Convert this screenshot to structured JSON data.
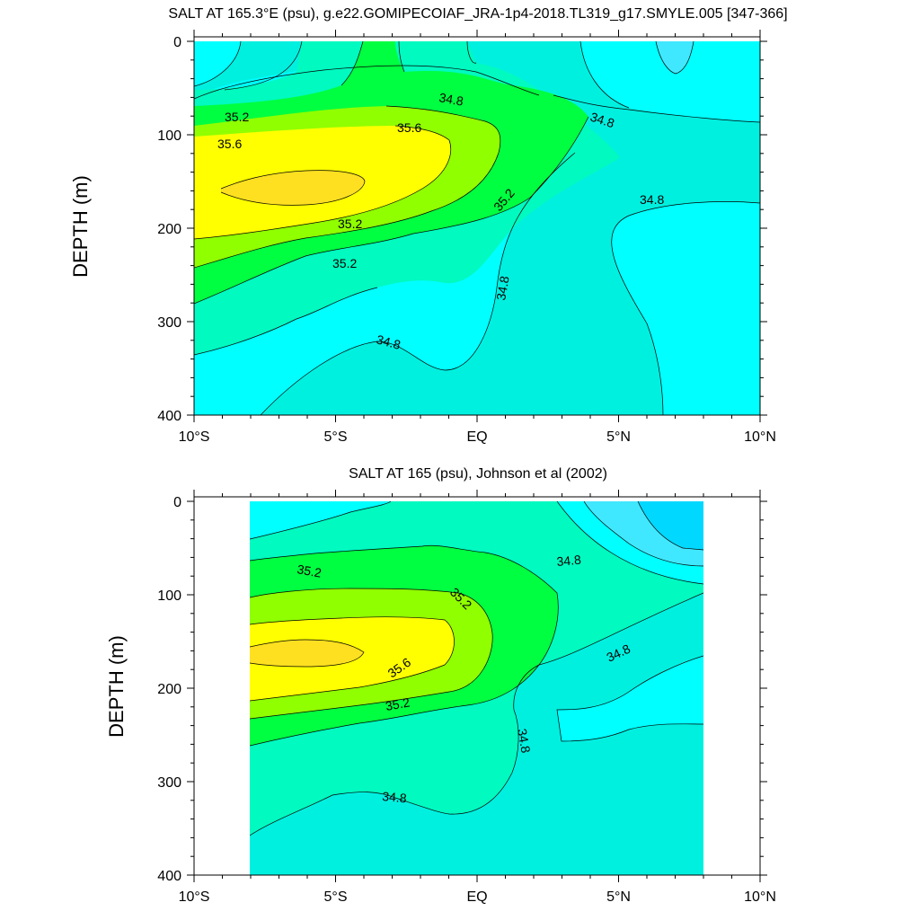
{
  "chart_data": [
    {
      "type": "contour",
      "title": "SALT AT 165.3°E (psu), g.e22.GOMIPECOIAF_JRA-1p4-2018.TL319_g17.SMYLE.005 [347-366]",
      "ylabel": "DEPTH (m)",
      "xlim": [
        -10,
        10
      ],
      "ylim": [
        400,
        0
      ],
      "xticks": [
        "10°S",
        "5°S",
        "EQ",
        "5°N",
        "10°N"
      ],
      "yticks": [
        "0",
        "100",
        "200",
        "300",
        "400"
      ],
      "contour_labels": [
        "35.2",
        "35.6",
        "35.6",
        "35.2",
        "35.2",
        "34.8",
        "34.8",
        "35.2",
        "34.8",
        "34.8"
      ]
    },
    {
      "type": "contour",
      "title": "SALT AT 165 (psu), Johnson et al (2002)",
      "ylabel": "DEPTH (m)",
      "xlim": [
        -10,
        10
      ],
      "ylim": [
        400,
        0
      ],
      "data_xrange": [
        -8,
        8
      ],
      "xticks": [
        "10°S",
        "5°S",
        "EQ",
        "5°N",
        "10°N"
      ],
      "yticks": [
        "0",
        "100",
        "200",
        "300",
        "400"
      ],
      "contour_labels": [
        "35.2",
        "35.2",
        "35.6",
        "35.2",
        "34.8",
        "34.8",
        "34.8",
        "34.8"
      ]
    }
  ],
  "colors": {
    "c1": "#00ffff",
    "c2": "#00f0e0",
    "c3": "#00fac0",
    "c4": "#00ff40",
    "c5": "#90ff00",
    "c6": "#ffff00",
    "c7": "#ffe020",
    "dark_cyan": "#00d8ff",
    "mid_cyan": "#40e8ff"
  }
}
